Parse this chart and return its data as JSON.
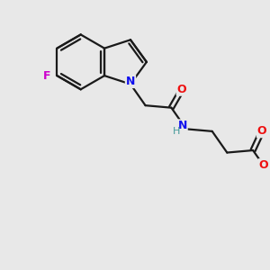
{
  "background_color": "#e8e8e8",
  "bond_color": "#1a1a1a",
  "N_color": "#1010ee",
  "O_color": "#ee1010",
  "F_color": "#cc00cc",
  "H_color": "#449999",
  "figsize": [
    3.0,
    3.0
  ],
  "dpi": 100,
  "xlim": [
    0,
    10
  ],
  "ylim": [
    0,
    10
  ]
}
